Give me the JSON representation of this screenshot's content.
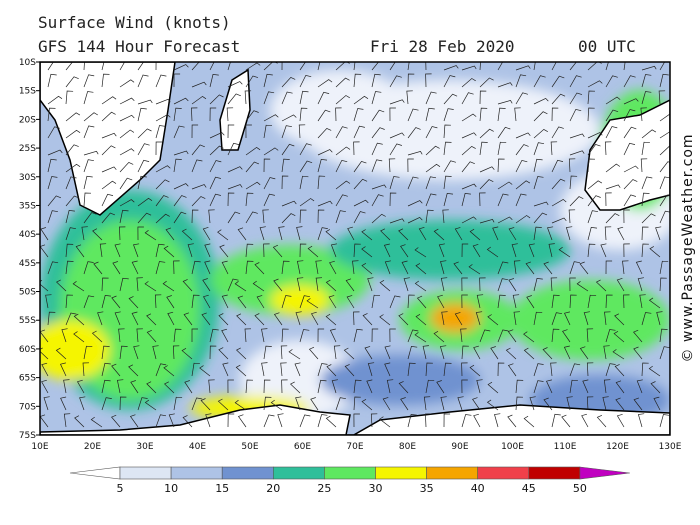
{
  "header": {
    "title": "Surface Wind (knots)",
    "subtitle": "GFS 144 Hour Forecast",
    "date": "Fri 28 Feb 2020",
    "time": "00 UTC"
  },
  "map": {
    "lat_labels": [
      "10S",
      "15S",
      "20S",
      "25S",
      "30S",
      "35S",
      "40S",
      "45S",
      "50S",
      "55S",
      "60S",
      "65S",
      "70S",
      "75S"
    ],
    "lon_labels": [
      "10E",
      "20E",
      "30E",
      "40E",
      "50E",
      "60E",
      "70E",
      "80E",
      "90E",
      "100E",
      "110E",
      "120E",
      "130E"
    ]
  },
  "legend": {
    "labels": [
      5,
      10,
      15,
      20,
      25,
      30,
      35,
      40,
      45,
      50
    ]
  },
  "credit": "© www.PassageWeather.com"
}
